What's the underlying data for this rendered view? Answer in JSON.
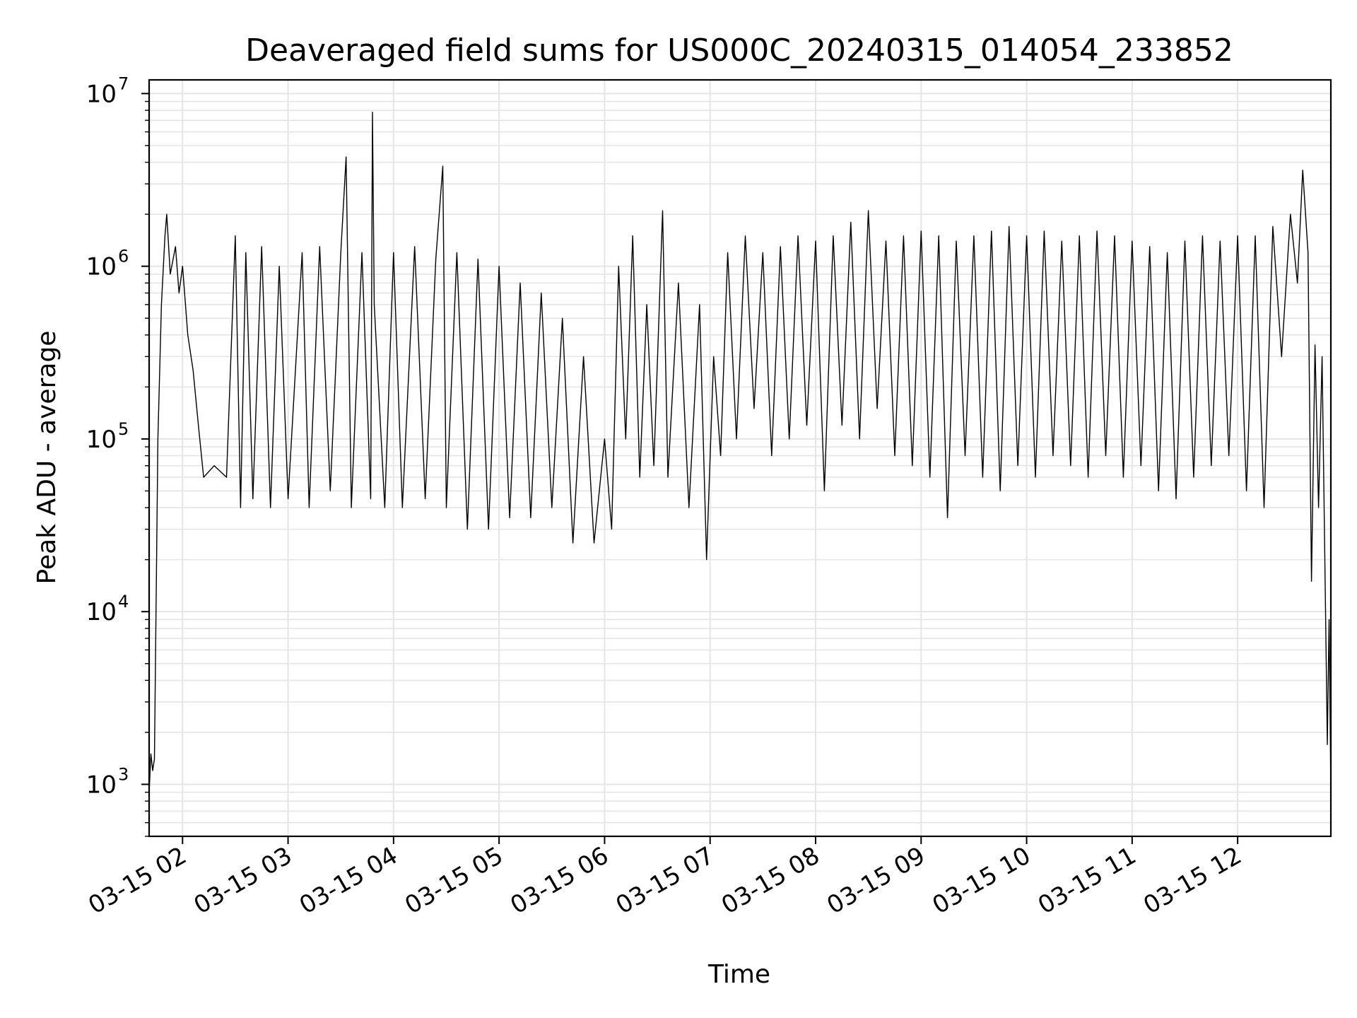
{
  "chart_data": {
    "type": "line",
    "title": "Deaveraged field sums for US000C_20240315_014054_233852",
    "xlabel": "Time",
    "ylabel": "Peak ADU - average",
    "x_tick_labels": [
      "03-15 02",
      "03-15 03",
      "03-15 04",
      "03-15 05",
      "03-15 06",
      "03-15 07",
      "03-15 08",
      "03-15 09",
      "03-15 10",
      "03-15 11",
      "03-15 12"
    ],
    "x_ticks": [
      "2024-03-15 02:00",
      "2024-03-15 03:00",
      "2024-03-15 04:00",
      "2024-03-15 05:00",
      "2024-03-15 06:00",
      "2024-03-15 07:00",
      "2024-03-15 08:00",
      "2024-03-15 09:00",
      "2024-03-15 10:00",
      "2024-03-15 11:00",
      "2024-03-15 12:00"
    ],
    "xlim": [
      "2024-03-15 01:41",
      "2024-03-15 12:53"
    ],
    "y_scale": "log",
    "ylim": [
      500,
      12000000
    ],
    "y_ticks": [
      {
        "base": "10",
        "exp": "3",
        "value": 1000
      },
      {
        "base": "10",
        "exp": "4",
        "value": 10000
      },
      {
        "base": "10",
        "exp": "5",
        "value": 100000
      },
      {
        "base": "10",
        "exp": "6",
        "value": 1000000
      },
      {
        "base": "10",
        "exp": "7",
        "value": 10000000
      }
    ],
    "grid": true,
    "line_color": "#000000",
    "grid_color": "#e5e5e5",
    "series": [
      {
        "points": [
          [
            "2024-03-15 01:41",
            900
          ],
          [
            "2024-03-15 01:42",
            1500
          ],
          [
            "2024-03-15 01:43",
            1200
          ],
          [
            "2024-03-15 01:44",
            1400
          ],
          [
            "2024-03-15 01:46",
            100000
          ],
          [
            "2024-03-15 01:48",
            600000
          ],
          [
            "2024-03-15 01:50",
            1500000
          ],
          [
            "2024-03-15 01:51",
            2000000
          ],
          [
            "2024-03-15 01:53",
            900000
          ],
          [
            "2024-03-15 01:56",
            1300000
          ],
          [
            "2024-03-15 01:58",
            700000
          ],
          [
            "2024-03-15 02:00",
            1000000
          ],
          [
            "2024-03-15 02:03",
            400000
          ],
          [
            "2024-03-15 02:06",
            250000
          ],
          [
            "2024-03-15 02:09",
            120000
          ],
          [
            "2024-03-15 02:12",
            60000
          ],
          [
            "2024-03-15 02:18",
            70000
          ],
          [
            "2024-03-15 02:25",
            60000
          ],
          [
            "2024-03-15 02:30",
            1500000
          ],
          [
            "2024-03-15 02:33",
            40000
          ],
          [
            "2024-03-15 02:36",
            1200000
          ],
          [
            "2024-03-15 02:40",
            45000
          ],
          [
            "2024-03-15 02:45",
            1300000
          ],
          [
            "2024-03-15 02:50",
            40000
          ],
          [
            "2024-03-15 02:55",
            1000000
          ],
          [
            "2024-03-15 03:00",
            45000
          ],
          [
            "2024-03-15 03:08",
            1200000
          ],
          [
            "2024-03-15 03:12",
            40000
          ],
          [
            "2024-03-15 03:18",
            1300000
          ],
          [
            "2024-03-15 03:24",
            50000
          ],
          [
            "2024-03-15 03:30",
            1200000
          ],
          [
            "2024-03-15 03:33",
            4300000
          ],
          [
            "2024-03-15 03:36",
            40000
          ],
          [
            "2024-03-15 03:42",
            1200000
          ],
          [
            "2024-03-15 03:47",
            45000
          ],
          [
            "2024-03-15 03:48",
            7800000
          ],
          [
            "2024-03-15 03:49",
            600000
          ],
          [
            "2024-03-15 03:55",
            40000
          ],
          [
            "2024-03-15 04:00",
            1200000
          ],
          [
            "2024-03-15 04:05",
            40000
          ],
          [
            "2024-03-15 04:12",
            1300000
          ],
          [
            "2024-03-15 04:18",
            45000
          ],
          [
            "2024-03-15 04:24",
            1100000
          ],
          [
            "2024-03-15 04:28",
            3800000
          ],
          [
            "2024-03-15 04:30",
            40000
          ],
          [
            "2024-03-15 04:36",
            1200000
          ],
          [
            "2024-03-15 04:42",
            30000
          ],
          [
            "2024-03-15 04:48",
            1100000
          ],
          [
            "2024-03-15 04:54",
            30000
          ],
          [
            "2024-03-15 05:00",
            1000000
          ],
          [
            "2024-03-15 05:06",
            35000
          ],
          [
            "2024-03-15 05:12",
            800000
          ],
          [
            "2024-03-15 05:18",
            35000
          ],
          [
            "2024-03-15 05:24",
            700000
          ],
          [
            "2024-03-15 05:30",
            40000
          ],
          [
            "2024-03-15 05:36",
            500000
          ],
          [
            "2024-03-15 05:42",
            25000
          ],
          [
            "2024-03-15 05:48",
            300000
          ],
          [
            "2024-03-15 05:54",
            25000
          ],
          [
            "2024-03-15 06:00",
            100000
          ],
          [
            "2024-03-15 06:04",
            30000
          ],
          [
            "2024-03-15 06:08",
            1000000
          ],
          [
            "2024-03-15 06:12",
            100000
          ],
          [
            "2024-03-15 06:16",
            1500000
          ],
          [
            "2024-03-15 06:20",
            60000
          ],
          [
            "2024-03-15 06:24",
            600000
          ],
          [
            "2024-03-15 06:28",
            70000
          ],
          [
            "2024-03-15 06:33",
            2100000
          ],
          [
            "2024-03-15 06:36",
            60000
          ],
          [
            "2024-03-15 06:42",
            800000
          ],
          [
            "2024-03-15 06:48",
            40000
          ],
          [
            "2024-03-15 06:54",
            600000
          ],
          [
            "2024-03-15 06:58",
            20000
          ],
          [
            "2024-03-15 07:02",
            300000
          ],
          [
            "2024-03-15 07:06",
            80000
          ],
          [
            "2024-03-15 07:10",
            1200000
          ],
          [
            "2024-03-15 07:15",
            100000
          ],
          [
            "2024-03-15 07:20",
            1500000
          ],
          [
            "2024-03-15 07:25",
            150000
          ],
          [
            "2024-03-15 07:30",
            1200000
          ],
          [
            "2024-03-15 07:35",
            80000
          ],
          [
            "2024-03-15 07:40",
            1300000
          ],
          [
            "2024-03-15 07:45",
            100000
          ],
          [
            "2024-03-15 07:50",
            1500000
          ],
          [
            "2024-03-15 07:55",
            120000
          ],
          [
            "2024-03-15 08:00",
            1400000
          ],
          [
            "2024-03-15 08:05",
            50000
          ],
          [
            "2024-03-15 08:10",
            1500000
          ],
          [
            "2024-03-15 08:15",
            120000
          ],
          [
            "2024-03-15 08:20",
            1800000
          ],
          [
            "2024-03-15 08:25",
            100000
          ],
          [
            "2024-03-15 08:30",
            2100000
          ],
          [
            "2024-03-15 08:35",
            150000
          ],
          [
            "2024-03-15 08:40",
            1400000
          ],
          [
            "2024-03-15 08:45",
            80000
          ],
          [
            "2024-03-15 08:50",
            1500000
          ],
          [
            "2024-03-15 08:55",
            70000
          ],
          [
            "2024-03-15 09:00",
            1600000
          ],
          [
            "2024-03-15 09:05",
            60000
          ],
          [
            "2024-03-15 09:10",
            1500000
          ],
          [
            "2024-03-15 09:15",
            35000
          ],
          [
            "2024-03-15 09:20",
            1400000
          ],
          [
            "2024-03-15 09:25",
            80000
          ],
          [
            "2024-03-15 09:30",
            1500000
          ],
          [
            "2024-03-15 09:35",
            60000
          ],
          [
            "2024-03-15 09:40",
            1600000
          ],
          [
            "2024-03-15 09:45",
            50000
          ],
          [
            "2024-03-15 09:50",
            1700000
          ],
          [
            "2024-03-15 09:55",
            70000
          ],
          [
            "2024-03-15 10:00",
            1500000
          ],
          [
            "2024-03-15 10:05",
            60000
          ],
          [
            "2024-03-15 10:10",
            1600000
          ],
          [
            "2024-03-15 10:15",
            80000
          ],
          [
            "2024-03-15 10:20",
            1400000
          ],
          [
            "2024-03-15 10:25",
            70000
          ],
          [
            "2024-03-15 10:30",
            1500000
          ],
          [
            "2024-03-15 10:35",
            60000
          ],
          [
            "2024-03-15 10:40",
            1600000
          ],
          [
            "2024-03-15 10:45",
            80000
          ],
          [
            "2024-03-15 10:50",
            1500000
          ],
          [
            "2024-03-15 10:55",
            60000
          ],
          [
            "2024-03-15 11:00",
            1400000
          ],
          [
            "2024-03-15 11:05",
            70000
          ],
          [
            "2024-03-15 11:10",
            1300000
          ],
          [
            "2024-03-15 11:15",
            50000
          ],
          [
            "2024-03-15 11:20",
            1200000
          ],
          [
            "2024-03-15 11:25",
            45000
          ],
          [
            "2024-03-15 11:30",
            1400000
          ],
          [
            "2024-03-15 11:35",
            60000
          ],
          [
            "2024-03-15 11:40",
            1500000
          ],
          [
            "2024-03-15 11:45",
            70000
          ],
          [
            "2024-03-15 11:50",
            1400000
          ],
          [
            "2024-03-15 11:55",
            80000
          ],
          [
            "2024-03-15 12:00",
            1500000
          ],
          [
            "2024-03-15 12:05",
            50000
          ],
          [
            "2024-03-15 12:10",
            1500000
          ],
          [
            "2024-03-15 12:15",
            40000
          ],
          [
            "2024-03-15 12:20",
            1700000
          ],
          [
            "2024-03-15 12:25",
            300000
          ],
          [
            "2024-03-15 12:30",
            2000000
          ],
          [
            "2024-03-15 12:34",
            800000
          ],
          [
            "2024-03-15 12:37",
            3600000
          ],
          [
            "2024-03-15 12:40",
            1200000
          ],
          [
            "2024-03-15 12:42",
            15000
          ],
          [
            "2024-03-15 12:44",
            350000
          ],
          [
            "2024-03-15 12:46",
            40000
          ],
          [
            "2024-03-15 12:48",
            300000
          ],
          [
            "2024-03-15 12:50",
            10000
          ],
          [
            "2024-03-15 12:51",
            1700
          ],
          [
            "2024-03-15 12:52",
            9000
          ],
          [
            "2024-03-15 12:53",
            950
          ]
        ]
      }
    ]
  }
}
